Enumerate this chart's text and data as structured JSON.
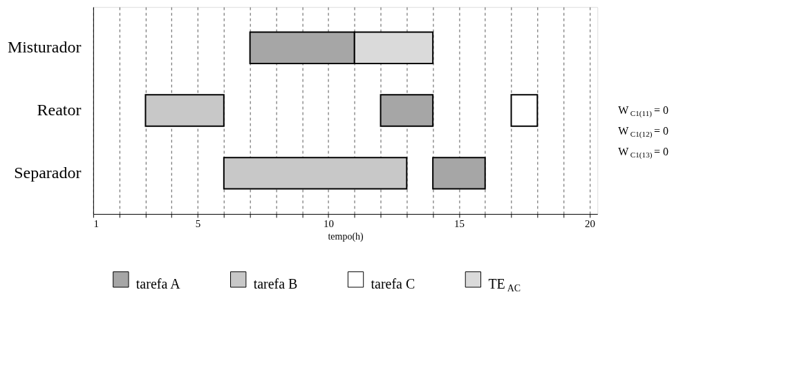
{
  "chart_data": {
    "type": "bar",
    "orientation": "horizontal",
    "xlabel": "tempo(h)",
    "categories": [
      "Misturador",
      "Reator",
      "Separador"
    ],
    "series": [
      {
        "name": "tarefa A",
        "color": "#a6a6a6",
        "values": [
          4,
          2,
          2
        ],
        "base": [
          7,
          12,
          14
        ]
      },
      {
        "name": "tarefa B",
        "color": "#c8c8c8",
        "values": [
          null,
          3,
          7
        ],
        "base": [
          null,
          3,
          6
        ]
      },
      {
        "name": "tarefa C",
        "color": "#ffffff",
        "values": [
          null,
          1,
          null
        ],
        "base": [
          null,
          17,
          null
        ]
      },
      {
        "name": "TE$_{AC}$",
        "color": "#dadada",
        "values": [
          3,
          null,
          null
        ],
        "base": [
          11,
          null,
          null
        ]
      }
    ],
    "xlim": [
      1,
      20.3
    ],
    "xticks": [
      1,
      {
        "value": 2,
        "label": null
      },
      {
        "value": 3,
        "label": null
      },
      {
        "value": 4,
        "label": null
      },
      5,
      {
        "value": 6,
        "label": null
      },
      {
        "value": 7,
        "label": null
      },
      {
        "value": 8,
        "label": null
      },
      {
        "value": 9,
        "label": null
      },
      10,
      {
        "value": 11,
        "label": null
      },
      {
        "value": 12,
        "label": null
      },
      {
        "value": 13,
        "label": null
      },
      {
        "value": 14,
        "label": null
      },
      15,
      {
        "value": 16,
        "label": null
      },
      {
        "value": 17,
        "label": null
      },
      {
        "value": 18,
        "label": null
      },
      {
        "value": 19,
        "label": null
      },
      20
    ],
    "grid": "x",
    "legend": "bottom",
    "annotations": [
      "W$_{C1(11)}$ = 0",
      "W$_{C1(12)}$ = 0",
      "W$_{C1(13)}$ = 0"
    ]
  }
}
